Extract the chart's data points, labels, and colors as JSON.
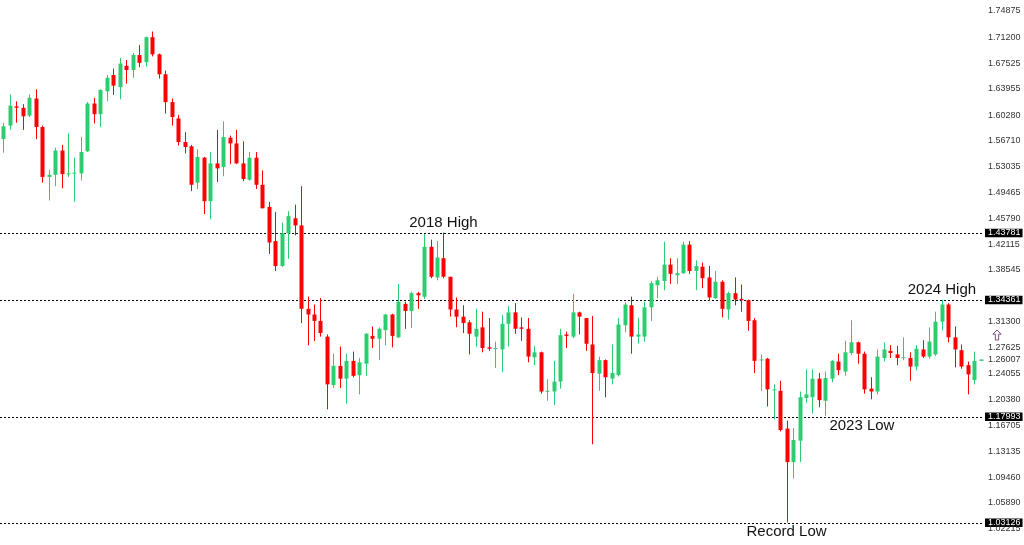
{
  "chart_data": {
    "type": "candlestick",
    "categories": [
      null,
      null,
      null,
      null,
      null,
      null,
      null,
      null,
      null,
      null,
      null,
      null,
      null,
      null,
      null,
      null,
      null,
      null,
      null,
      null,
      null,
      null,
      null,
      null,
      null,
      null,
      null,
      null,
      null,
      null,
      null,
      null,
      null,
      null,
      null,
      null,
      null,
      null,
      null,
      null,
      null,
      null,
      null,
      null,
      null,
      null,
      null,
      null,
      null,
      null,
      null,
      null,
      null,
      null,
      null,
      null,
      null,
      null,
      null,
      null,
      null,
      null,
      null,
      null,
      null,
      null,
      null,
      null,
      null,
      null,
      null,
      null,
      null,
      null,
      null,
      null,
      null,
      null,
      null,
      null,
      null,
      null,
      null,
      null,
      null,
      null,
      null,
      null,
      null,
      null,
      null,
      null,
      null,
      null,
      null,
      null,
      null,
      null,
      null,
      null,
      null,
      null,
      null,
      null,
      null,
      null,
      null,
      null,
      null,
      null,
      null,
      null,
      null,
      null,
      null,
      null,
      null,
      null,
      null,
      null,
      null,
      null,
      null,
      null,
      null,
      null,
      null,
      null,
      null,
      null,
      null,
      null,
      null,
      null,
      null,
      null,
      null,
      null,
      null,
      null,
      null,
      null,
      null,
      null,
      null,
      null,
      null,
      null,
      null,
      null,
      null,
      null
    ],
    "ohlc": [
      [
        1.569,
        1.592,
        1.55,
        1.587
      ],
      [
        1.588,
        1.632,
        1.582,
        1.616
      ],
      [
        1.615,
        1.622,
        1.592,
        1.613
      ],
      [
        1.613,
        1.618,
        1.582,
        1.601
      ],
      [
        1.602,
        1.632,
        1.6,
        1.627
      ],
      [
        1.626,
        1.639,
        1.569,
        1.586
      ],
      [
        1.586,
        1.588,
        1.508,
        1.516
      ],
      [
        1.516,
        1.526,
        1.483,
        1.519
      ],
      [
        1.519,
        1.557,
        1.503,
        1.553
      ],
      [
        1.553,
        1.561,
        1.5,
        1.52
      ],
      [
        1.52,
        1.577,
        1.516,
        1.521
      ],
      [
        1.521,
        1.543,
        1.481,
        1.522
      ],
      [
        1.521,
        1.572,
        1.511,
        1.551
      ],
      [
        1.552,
        1.621,
        1.551,
        1.619
      ],
      [
        1.619,
        1.627,
        1.591,
        1.604
      ],
      [
        1.604,
        1.639,
        1.586,
        1.638
      ],
      [
        1.636,
        1.659,
        1.622,
        1.655
      ],
      [
        1.659,
        1.668,
        1.631,
        1.644
      ],
      [
        1.642,
        1.683,
        1.625,
        1.675
      ],
      [
        1.672,
        1.68,
        1.647,
        1.666
      ],
      [
        1.666,
        1.69,
        1.655,
        1.687
      ],
      [
        1.687,
        1.701,
        1.67,
        1.676
      ],
      [
        1.677,
        1.713,
        1.671,
        1.712
      ],
      [
        1.712,
        1.72,
        1.685,
        1.688
      ],
      [
        1.688,
        1.689,
        1.654,
        1.66
      ],
      [
        1.66,
        1.665,
        1.605,
        1.621
      ],
      [
        1.621,
        1.626,
        1.588,
        1.6
      ],
      [
        1.598,
        1.603,
        1.56,
        1.565
      ],
      [
        1.565,
        1.579,
        1.549,
        1.558
      ],
      [
        1.559,
        1.561,
        1.496,
        1.505
      ],
      [
        1.508,
        1.555,
        1.499,
        1.544
      ],
      [
        1.543,
        1.544,
        1.464,
        1.482
      ],
      [
        1.482,
        1.551,
        1.457,
        1.535
      ],
      [
        1.535,
        1.582,
        1.509,
        1.528
      ],
      [
        1.53,
        1.594,
        1.517,
        1.572
      ],
      [
        1.571,
        1.574,
        1.534,
        1.563
      ],
      [
        1.563,
        1.582,
        1.534,
        1.535
      ],
      [
        1.535,
        1.566,
        1.51,
        1.513
      ],
      [
        1.512,
        1.551,
        1.511,
        1.543
      ],
      [
        1.543,
        1.551,
        1.499,
        1.505
      ],
      [
        1.505,
        1.525,
        1.472,
        1.472
      ],
      [
        1.474,
        1.481,
        1.408,
        1.424
      ],
      [
        1.426,
        1.467,
        1.384,
        1.391
      ],
      [
        1.391,
        1.452,
        1.39,
        1.437
      ],
      [
        1.437,
        1.468,
        1.401,
        1.461
      ],
      [
        1.458,
        1.477,
        1.434,
        1.448
      ],
      [
        1.448,
        1.503,
        1.311,
        1.331
      ],
      [
        1.331,
        1.348,
        1.28,
        1.323
      ],
      [
        1.323,
        1.337,
        1.286,
        1.314
      ],
      [
        1.314,
        1.346,
        1.292,
        1.297
      ],
      [
        1.292,
        1.295,
        1.19,
        1.225
      ],
      [
        1.224,
        1.268,
        1.22,
        1.251
      ],
      [
        1.251,
        1.278,
        1.22,
        1.233
      ],
      [
        1.233,
        1.268,
        1.198,
        1.258
      ],
      [
        1.258,
        1.271,
        1.235,
        1.237
      ],
      [
        1.238,
        1.262,
        1.211,
        1.256
      ],
      [
        1.254,
        1.297,
        1.237,
        1.296
      ],
      [
        1.293,
        1.306,
        1.276,
        1.289
      ],
      [
        1.289,
        1.305,
        1.259,
        1.303
      ],
      [
        1.301,
        1.324,
        1.28,
        1.323
      ],
      [
        1.323,
        1.324,
        1.277,
        1.293
      ],
      [
        1.291,
        1.366,
        1.29,
        1.341
      ],
      [
        1.338,
        1.341,
        1.303,
        1.328
      ],
      [
        1.328,
        1.355,
        1.304,
        1.353
      ],
      [
        1.353,
        1.355,
        1.331,
        1.35
      ],
      [
        1.348,
        1.436,
        1.345,
        1.418
      ],
      [
        1.418,
        1.428,
        1.374,
        1.376
      ],
      [
        1.375,
        1.426,
        1.371,
        1.403
      ],
      [
        1.402,
        1.4378,
        1.374,
        1.376
      ],
      [
        1.376,
        1.376,
        1.32,
        1.33
      ],
      [
        1.33,
        1.347,
        1.305,
        1.32
      ],
      [
        1.32,
        1.336,
        1.297,
        1.311
      ],
      [
        1.312,
        1.315,
        1.267,
        1.296
      ],
      [
        1.292,
        1.331,
        1.278,
        1.303
      ],
      [
        1.305,
        1.327,
        1.27,
        1.276
      ],
      [
        1.277,
        1.318,
        1.272,
        1.275
      ],
      [
        1.275,
        1.285,
        1.248,
        1.276
      ],
      [
        1.274,
        1.322,
        1.242,
        1.31
      ],
      [
        1.31,
        1.335,
        1.278,
        1.326
      ],
      [
        1.326,
        1.339,
        1.296,
        1.303
      ],
      [
        1.305,
        1.319,
        1.286,
        1.303
      ],
      [
        1.303,
        1.318,
        1.256,
        1.264
      ],
      [
        1.263,
        1.279,
        1.252,
        1.27
      ],
      [
        1.27,
        1.271,
        1.212,
        1.215
      ],
      [
        1.215,
        1.232,
        1.202,
        1.216
      ],
      [
        1.215,
        1.258,
        1.196,
        1.229
      ],
      [
        1.229,
        1.303,
        1.219,
        1.294
      ],
      [
        1.295,
        1.299,
        1.276,
        1.293
      ],
      [
        1.292,
        1.352,
        1.29,
        1.326
      ],
      [
        1.326,
        1.327,
        1.295,
        1.32
      ],
      [
        1.318,
        1.318,
        1.272,
        1.282
      ],
      [
        1.281,
        1.321,
        1.141,
        1.241
      ],
      [
        1.24,
        1.264,
        1.216,
        1.259
      ],
      [
        1.259,
        1.26,
        1.207,
        1.235
      ],
      [
        1.233,
        1.281,
        1.225,
        1.241
      ],
      [
        1.238,
        1.318,
        1.236,
        1.309
      ],
      [
        1.308,
        1.34,
        1.298,
        1.337
      ],
      [
        1.336,
        1.348,
        1.268,
        1.292
      ],
      [
        1.292,
        1.318,
        1.282,
        1.295
      ],
      [
        1.292,
        1.341,
        1.285,
        1.333
      ],
      [
        1.333,
        1.37,
        1.314,
        1.367
      ],
      [
        1.364,
        1.376,
        1.346,
        1.371
      ],
      [
        1.37,
        1.425,
        1.357,
        1.393
      ],
      [
        1.393,
        1.402,
        1.366,
        1.38
      ],
      [
        1.378,
        1.402,
        1.366,
        1.381
      ],
      [
        1.381,
        1.425,
        1.38,
        1.421
      ],
      [
        1.421,
        1.426,
        1.38,
        1.384
      ],
      [
        1.384,
        1.399,
        1.357,
        1.391
      ],
      [
        1.39,
        1.396,
        1.36,
        1.374
      ],
      [
        1.375,
        1.391,
        1.342,
        1.347
      ],
      [
        1.346,
        1.384,
        1.345,
        1.369
      ],
      [
        1.369,
        1.371,
        1.319,
        1.331
      ],
      [
        1.33,
        1.355,
        1.316,
        1.353
      ],
      [
        1.353,
        1.375,
        1.336,
        1.344
      ],
      [
        1.345,
        1.365,
        1.327,
        1.343
      ],
      [
        1.343,
        1.344,
        1.3,
        1.314
      ],
      [
        1.315,
        1.318,
        1.241,
        1.258
      ],
      [
        1.259,
        1.267,
        1.216,
        1.26
      ],
      [
        1.261,
        1.262,
        1.194,
        1.218
      ],
      [
        1.217,
        1.225,
        1.176,
        1.218
      ],
      [
        1.216,
        1.23,
        1.159,
        1.161
      ],
      [
        1.163,
        1.174,
        1.0313,
        1.116
      ],
      [
        1.116,
        1.164,
        1.093,
        1.147
      ],
      [
        1.146,
        1.215,
        1.116,
        1.207
      ],
      [
        1.206,
        1.246,
        1.199,
        1.211
      ],
      [
        1.207,
        1.246,
        1.184,
        1.233
      ],
      [
        1.233,
        1.241,
        1.193,
        1.203
      ],
      [
        1.202,
        1.243,
        1.181,
        1.234
      ],
      [
        1.233,
        1.259,
        1.228,
        1.258
      ],
      [
        1.257,
        1.268,
        1.238,
        1.245
      ],
      [
        1.243,
        1.286,
        1.237,
        1.27
      ],
      [
        1.269,
        1.315,
        1.266,
        1.284
      ],
      [
        1.284,
        1.285,
        1.254,
        1.268
      ],
      [
        1.268,
        1.271,
        1.212,
        1.218
      ],
      [
        1.219,
        1.235,
        1.204,
        1.215
      ],
      [
        1.215,
        1.274,
        1.211,
        1.264
      ],
      [
        1.262,
        1.284,
        1.257,
        1.274
      ],
      [
        1.272,
        1.28,
        1.262,
        1.269
      ],
      [
        1.267,
        1.279,
        1.252,
        1.262
      ],
      [
        1.262,
        1.291,
        1.259,
        1.263
      ],
      [
        1.262,
        1.27,
        1.23,
        1.25
      ],
      [
        1.25,
        1.28,
        1.245,
        1.275
      ],
      [
        1.274,
        1.287,
        1.262,
        1.264
      ],
      [
        1.264,
        1.305,
        1.261,
        1.285
      ],
      [
        1.267,
        1.327,
        1.265,
        1.313
      ],
      [
        1.313,
        1.3436,
        1.301,
        1.337
      ],
      [
        1.337,
        1.339,
        1.284,
        1.291
      ],
      [
        1.291,
        1.306,
        1.249,
        1.274
      ],
      [
        1.273,
        1.281,
        1.247,
        1.25
      ],
      [
        1.252,
        1.257,
        1.211,
        1.239
      ],
      [
        1.231,
        1.271,
        1.225,
        1.258
      ],
      [
        1.258,
        1.26,
        1.258,
        1.26
      ]
    ],
    "colors": [
      "#2ecc71",
      "#2ecc71",
      "#ff0000",
      "#ff0000",
      "#2ecc71",
      "#ff0000",
      "#ff0000",
      "#2ecc71",
      "#2ecc71",
      "#ff0000",
      "#2ecc71",
      "#2ecc71",
      "#2ecc71",
      "#2ecc71",
      "#ff0000",
      "#2ecc71",
      "#2ecc71",
      "#ff0000",
      "#2ecc71",
      "#ff0000",
      "#2ecc71",
      "#ff0000",
      "#2ecc71",
      "#ff0000",
      "#ff0000",
      "#ff0000",
      "#ff0000",
      "#ff0000",
      "#ff0000",
      "#ff0000",
      "#2ecc71",
      "#ff0000",
      "#2ecc71",
      "#ff0000",
      "#2ecc71",
      "#ff0000",
      "#ff0000",
      "#ff0000",
      "#2ecc71",
      "#ff0000",
      "#ff0000",
      "#ff0000",
      "#ff0000",
      "#2ecc71",
      "#2ecc71",
      "#ff0000",
      "#ff0000",
      "#ff0000",
      "#ff0000",
      "#ff0000",
      "#ff0000",
      "#2ecc71",
      "#ff0000",
      "#2ecc71",
      "#ff0000",
      "#2ecc71",
      "#2ecc71",
      "#ff0000",
      "#2ecc71",
      "#2ecc71",
      "#ff0000",
      "#2ecc71",
      "#ff0000",
      "#2ecc71",
      "#ff0000",
      "#2ecc71",
      "#ff0000",
      "#2ecc71",
      "#ff0000",
      "#ff0000",
      "#ff0000",
      "#ff0000",
      "#ff0000",
      "#2ecc71",
      "#ff0000",
      "#ff0000",
      "#2ecc71",
      "#2ecc71",
      "#2ecc71",
      "#ff0000",
      "#ff0000",
      "#ff0000",
      "#2ecc71",
      "#ff0000",
      "#2ecc71",
      "#2ecc71",
      "#2ecc71",
      "#ff0000",
      "#2ecc71",
      "#ff0000",
      "#ff0000",
      "#ff0000",
      "#2ecc71",
      "#ff0000",
      "#2ecc71",
      "#2ecc71",
      "#2ecc71",
      "#ff0000",
      "#2ecc71",
      "#2ecc71",
      "#2ecc71",
      "#2ecc71",
      "#2ecc71",
      "#ff0000",
      "#2ecc71",
      "#2ecc71",
      "#ff0000",
      "#2ecc71",
      "#ff0000",
      "#ff0000",
      "#2ecc71",
      "#ff0000",
      "#2ecc71",
      "#ff0000",
      "#ff0000",
      "#ff0000",
      "#ff0000",
      "#2ecc71",
      "#ff0000",
      "#2ecc71",
      "#ff0000",
      "#ff0000",
      "#2ecc71",
      "#2ecc71",
      "#2ecc71",
      "#2ecc71",
      "#ff0000",
      "#2ecc71",
      "#2ecc71",
      "#ff0000",
      "#2ecc71",
      "#2ecc71",
      "#ff0000",
      "#ff0000",
      "#ff0000",
      "#2ecc71",
      "#2ecc71",
      "#ff0000",
      "#ff0000",
      "#2ecc71",
      "#ff0000",
      "#2ecc71",
      "#ff0000",
      "#2ecc71",
      "#2ecc71",
      "#2ecc71",
      "#ff0000",
      "#ff0000",
      "#ff0000",
      "#ff0000",
      "#2ecc71",
      "#2ecc71"
    ],
    "ylim": [
      1.02215,
      1.74875
    ],
    "yticks": [
      {
        "value": 1.74875,
        "label": "1.74875"
      },
      {
        "value": 1.712,
        "label": "1.71200"
      },
      {
        "value": 1.67525,
        "label": "1.67525"
      },
      {
        "value": 1.63955,
        "label": "1.63955"
      },
      {
        "value": 1.6028,
        "label": "1.60280"
      },
      {
        "value": 1.5671,
        "label": "1.56710"
      },
      {
        "value": 1.53035,
        "label": "1.53035"
      },
      {
        "value": 1.49465,
        "label": "1.49465"
      },
      {
        "value": 1.4579,
        "label": "1.45790"
      },
      {
        "value": 1.42115,
        "label": "1.42115"
      },
      {
        "value": 1.38545,
        "label": "1.38545"
      },
      {
        "value": 1.313,
        "label": "1.31300"
      },
      {
        "value": 1.27625,
        "label": "1.27625"
      },
      {
        "value": 1.26007,
        "label": "1.26007"
      },
      {
        "value": 1.24055,
        "label": "1.24055"
      },
      {
        "value": 1.2038,
        "label": "1.20380"
      },
      {
        "value": 1.16705,
        "label": "1.16705"
      },
      {
        "value": 1.13135,
        "label": "1.13135"
      },
      {
        "value": 1.0946,
        "label": "1.09460"
      },
      {
        "value": 1.0589,
        "label": "1.05890"
      },
      {
        "value": 1.02215,
        "label": "1.02215"
      }
    ],
    "tick_labels": "y",
    "grid": false,
    "ref_lines": [
      {
        "axis": "y",
        "value": 1.43781,
        "label": "1.43781",
        "line_style": "dashed",
        "color": "#000000"
      },
      {
        "axis": "y",
        "value": 1.34361,
        "label": "1.34361",
        "line_style": "dashed",
        "color": "#000000"
      },
      {
        "axis": "y",
        "value": 1.17993,
        "label": "1.17993",
        "line_style": "dashed",
        "color": "#000000"
      },
      {
        "axis": "y",
        "value": 1.03126,
        "label": "1.03126",
        "line_style": "dashed",
        "color": "#000000"
      }
    ],
    "annotations": [
      {
        "text": "2018 High",
        "y": 1.43781
      },
      {
        "text": "2024 High",
        "y": 1.34361
      },
      {
        "text": "2023 Low",
        "y": 1.17993
      },
      {
        "text": "Record Low",
        "y": 1.03126
      }
    ]
  }
}
